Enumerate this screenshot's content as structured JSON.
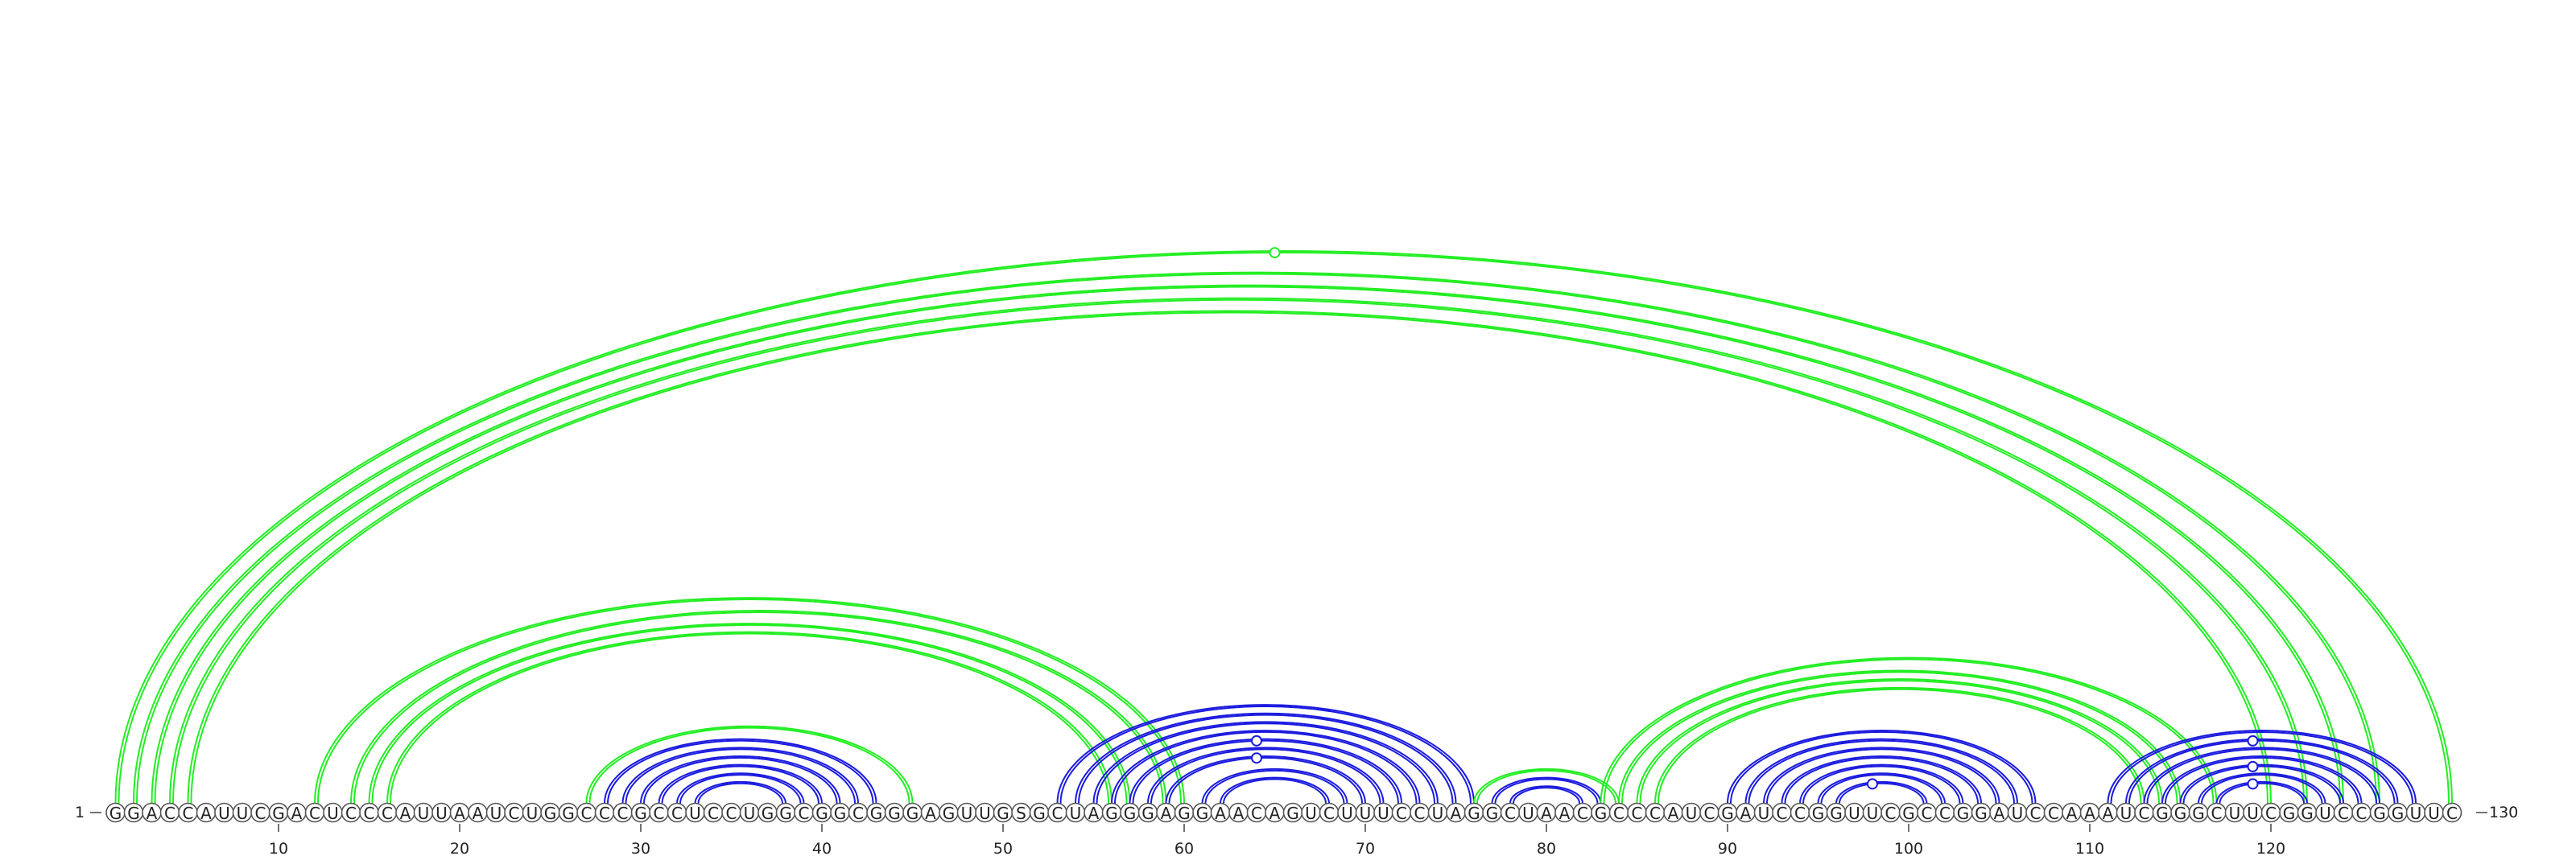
{
  "diagram": {
    "sequence": "GGACCAUUCGACUCCCAUUAAUCUGGCCCGCCUCCUGGCGGCGGGAGUUGSGCUAGGGAGGAACAGUCUUUCCUAGGCUAACGCCCAUCGAUCCGGUUCGCCGGAUCCAAAUCGGGCUUCGGUCCGGUUC",
    "start_label": "1",
    "end_label": "130",
    "tick_labels": [
      "10",
      "20",
      "30",
      "40",
      "50",
      "60",
      "70",
      "80",
      "90",
      "100",
      "110",
      "120"
    ],
    "colors": {
      "green": "#22ee22",
      "blue": "#1a1adf"
    },
    "arcs": [
      {
        "i": 1,
        "j": 130,
        "color": "green",
        "marker": 65
      },
      {
        "i": 2,
        "j": 126,
        "color": "green"
      },
      {
        "i": 3,
        "j": 124,
        "color": "green"
      },
      {
        "i": 4,
        "j": 122,
        "color": "green"
      },
      {
        "i": 5,
        "j": 120,
        "color": "green"
      },
      {
        "i": 12,
        "j": 60,
        "color": "green"
      },
      {
        "i": 14,
        "j": 59,
        "color": "green"
      },
      {
        "i": 15,
        "j": 57,
        "color": "green"
      },
      {
        "i": 16,
        "j": 56,
        "color": "green"
      },
      {
        "i": 27,
        "j": 45,
        "color": "green"
      },
      {
        "i": 28,
        "j": 43,
        "color": "blue"
      },
      {
        "i": 29,
        "j": 42,
        "color": "blue"
      },
      {
        "i": 30,
        "j": 41,
        "color": "blue"
      },
      {
        "i": 31,
        "j": 40,
        "color": "blue"
      },
      {
        "i": 32,
        "j": 39,
        "color": "blue"
      },
      {
        "i": 33,
        "j": 38,
        "color": "blue"
      },
      {
        "i": 53,
        "j": 76,
        "color": "blue"
      },
      {
        "i": 54,
        "j": 75,
        "color": "blue"
      },
      {
        "i": 55,
        "j": 74,
        "color": "blue"
      },
      {
        "i": 56,
        "j": 73,
        "color": "blue"
      },
      {
        "i": 57,
        "j": 72,
        "color": "blue",
        "marker": 64
      },
      {
        "i": 58,
        "j": 71,
        "color": "blue"
      },
      {
        "i": 59,
        "j": 70,
        "color": "blue",
        "marker": 64
      },
      {
        "i": 61,
        "j": 69,
        "color": "blue"
      },
      {
        "i": 62,
        "j": 68,
        "color": "blue"
      },
      {
        "i": 76,
        "j": 84,
        "color": "green"
      },
      {
        "i": 77,
        "j": 83,
        "color": "blue"
      },
      {
        "i": 78,
        "j": 82,
        "color": "blue"
      },
      {
        "i": 83,
        "j": 117,
        "color": "green"
      },
      {
        "i": 84,
        "j": 115,
        "color": "green"
      },
      {
        "i": 85,
        "j": 114,
        "color": "green"
      },
      {
        "i": 86,
        "j": 113,
        "color": "green"
      },
      {
        "i": 90,
        "j": 107,
        "color": "blue"
      },
      {
        "i": 91,
        "j": 106,
        "color": "blue"
      },
      {
        "i": 92,
        "j": 105,
        "color": "blue"
      },
      {
        "i": 93,
        "j": 104,
        "color": "blue"
      },
      {
        "i": 94,
        "j": 103,
        "color": "blue"
      },
      {
        "i": 95,
        "j": 102,
        "color": "blue"
      },
      {
        "i": 96,
        "j": 101,
        "color": "blue",
        "marker": 98
      },
      {
        "i": 111,
        "j": 128,
        "color": "blue"
      },
      {
        "i": 112,
        "j": 127,
        "color": "blue",
        "marker": 119
      },
      {
        "i": 113,
        "j": 126,
        "color": "blue"
      },
      {
        "i": 114,
        "j": 125,
        "color": "blue"
      },
      {
        "i": 115,
        "j": 124,
        "color": "blue",
        "marker": 119
      },
      {
        "i": 116,
        "j": 123,
        "color": "blue"
      },
      {
        "i": 117,
        "j": 122,
        "color": "blue",
        "marker": 119
      }
    ]
  }
}
